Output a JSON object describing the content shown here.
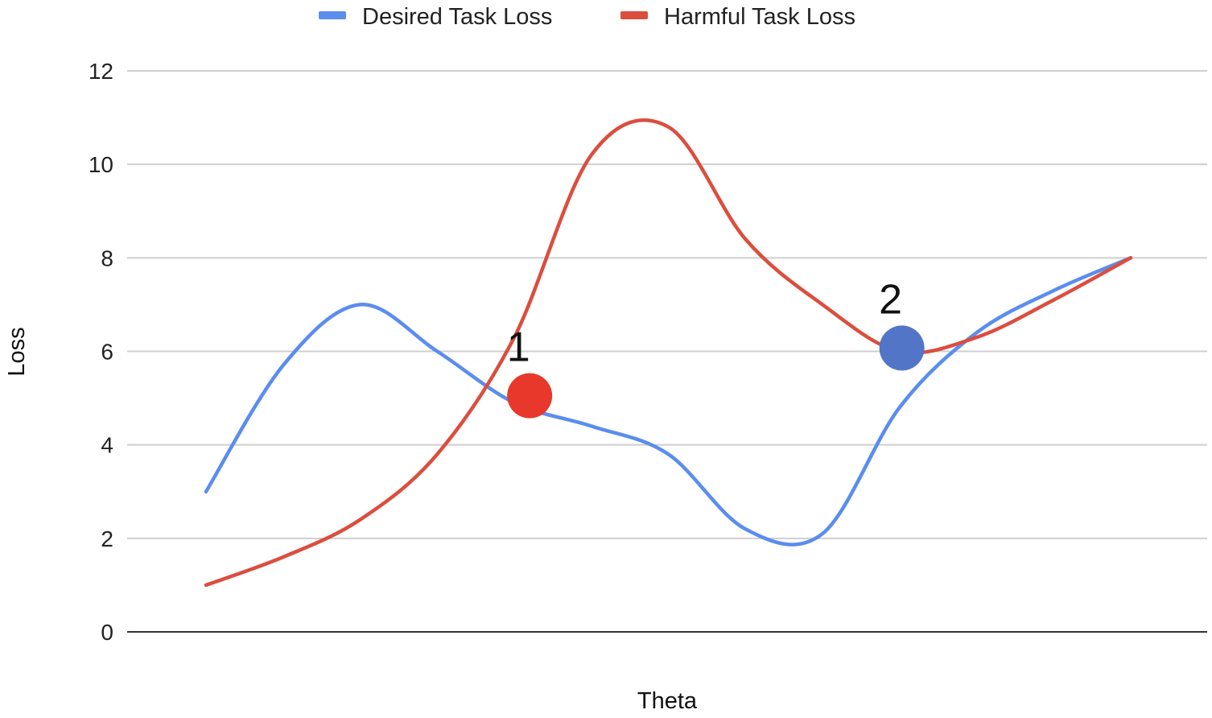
{
  "chart_data": {
    "type": "line",
    "title": "",
    "xlabel": "Theta",
    "ylabel": "Loss",
    "ylim": [
      0,
      12
    ],
    "yticks": [
      "0",
      "2",
      "4",
      "6",
      "8",
      "10",
      "12"
    ],
    "grid": true,
    "legend_position": "top",
    "x": [
      0,
      1,
      2,
      3,
      4,
      5,
      6,
      7,
      8,
      9,
      10,
      11,
      12
    ],
    "series": [
      {
        "name": "Desired Task Loss",
        "color": "#5B8DEF",
        "values": [
          3.0,
          5.7,
          7.0,
          6.0,
          4.9,
          4.4,
          3.8,
          2.2,
          2.1,
          4.8,
          6.4,
          7.3,
          8.0
        ]
      },
      {
        "name": "Harmful Task Loss",
        "color": "#DB4E3E",
        "values": [
          1.0,
          1.6,
          2.4,
          3.8,
          6.3,
          10.2,
          10.8,
          8.4,
          7.0,
          6.0,
          6.3,
          7.1,
          8.0
        ]
      }
    ],
    "annotations": [
      {
        "label": "1",
        "x": 4.2,
        "y": 5.05,
        "color": "#E8382B"
      },
      {
        "label": "2",
        "x": 9.03,
        "y": 6.07,
        "color": "#5375C7"
      }
    ]
  }
}
